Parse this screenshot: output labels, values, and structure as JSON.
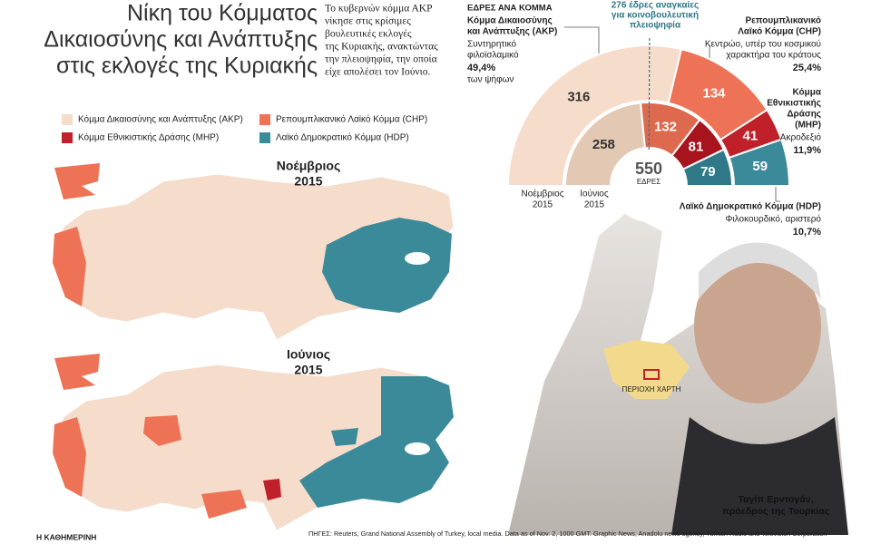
{
  "header": {
    "title": [
      "Νίκη του Κόμματος",
      "Δικαιοσύνης και Ανάπτυξης",
      "στις εκλογές της Κυριακής"
    ],
    "intro": [
      "Το κυβερνών κόμμα ΑΚΡ",
      "νίκησε στις κρίσιμες",
      "βουλευτικές εκλογές",
      "της Κυριακής, ανακτώντας",
      "την πλειοψηφία, την οποία",
      "είχε απολέσει τον Ιούνιο."
    ]
  },
  "map_legend": [
    {
      "name": "Κόμμα Δικαιοσύνης και Ανάπτυξης (ΑΚΡ)",
      "color": "#f5dccb"
    },
    {
      "name": "Ρεπουμπλικανικό Λαϊκό Κόμμα (CHP)",
      "color": "#ee7255"
    },
    {
      "name": "Κόμμα Εθνικιστικής Δράσης (MHP)",
      "color": "#c0202a"
    },
    {
      "name": "Λαϊκό Δημοκρατικό Κόμμα (HDP)",
      "color": "#3a8a9a"
    }
  ],
  "maps": [
    {
      "label": [
        "Νοέμβριος",
        "2015"
      ]
    },
    {
      "label": [
        "Ιούνιος",
        "2015"
      ]
    }
  ],
  "chart_data": {
    "type": "parliament",
    "title": "ΕΔΡΕΣ ΑΝΑ ΚΟΜΜΑ",
    "total": 550,
    "total_label": "ΕΔΡΕΣ",
    "majority": {
      "value": 276,
      "label": [
        "276 έδρες αναγκαίες",
        "για κοινοβουλευτική",
        "πλειοψηφία"
      ]
    },
    "categories": [
      [
        "Κόμμα Δικαιοσύνης",
        "και Ανάπτυξης (ΑΚΡ)"
      ],
      [
        "Ρεπουμπλικανικό",
        "Λαϊκό Κόμμα (CHP)"
      ],
      [
        "Κόμμα",
        "Εθνικιστικής",
        "Δράσης",
        "(MHP)"
      ],
      [
        "Λαϊκό Δημοκρατικό Κόμμα (HDP)"
      ]
    ],
    "descriptions": [
      [
        "Συντηρητικό",
        "φιλοϊσλαμικό"
      ],
      [
        "Κεντρώο, υπέρ του κοσμικού",
        "χαρακτήρα του κράτους"
      ],
      [
        "Ακροδεξιό"
      ],
      [
        "Φιλοκουρδικό, αριστερό"
      ]
    ],
    "vote_share": [
      49.4,
      25.4,
      11.9,
      10.7
    ],
    "vote_share_labels": [
      "49,4%",
      "25,4%",
      "11,9%",
      "10,7%"
    ],
    "vote_share_note": "των ψήφων",
    "series": [
      {
        "name": [
          "Νοέμβριος",
          "2015"
        ],
        "colors": [
          "#f5dccb",
          "#ee7255",
          "#c0202a",
          "#3a8a9a"
        ],
        "values": [
          316,
          134,
          41,
          59
        ]
      },
      {
        "name": [
          "Ιούνιος",
          "2015"
        ],
        "colors": [
          "#e3c9b4",
          "#dd6a4f",
          "#a8141d",
          "#2f7887"
        ],
        "values": [
          258,
          132,
          81,
          79
        ]
      }
    ]
  },
  "photo": {
    "caption": [
      "Ταγίπ Ερντογάν,",
      "πρόεδρος της Τουρκίας"
    ],
    "inset_label": "ΠΕΡΙΟΧΗ ΧΑΡΤΗ"
  },
  "footer": {
    "brand": "Η ΚΑΘΗΜΕΡΙΝΗ",
    "sources": "ΠΗΓΕΣ: Reuters, Grand National Assembly of Turkey, local media. Data as of Nov. 2, 1000 GMT. Graphic News, Anadolu news agency, Turkish Radio and Television Corporation"
  }
}
